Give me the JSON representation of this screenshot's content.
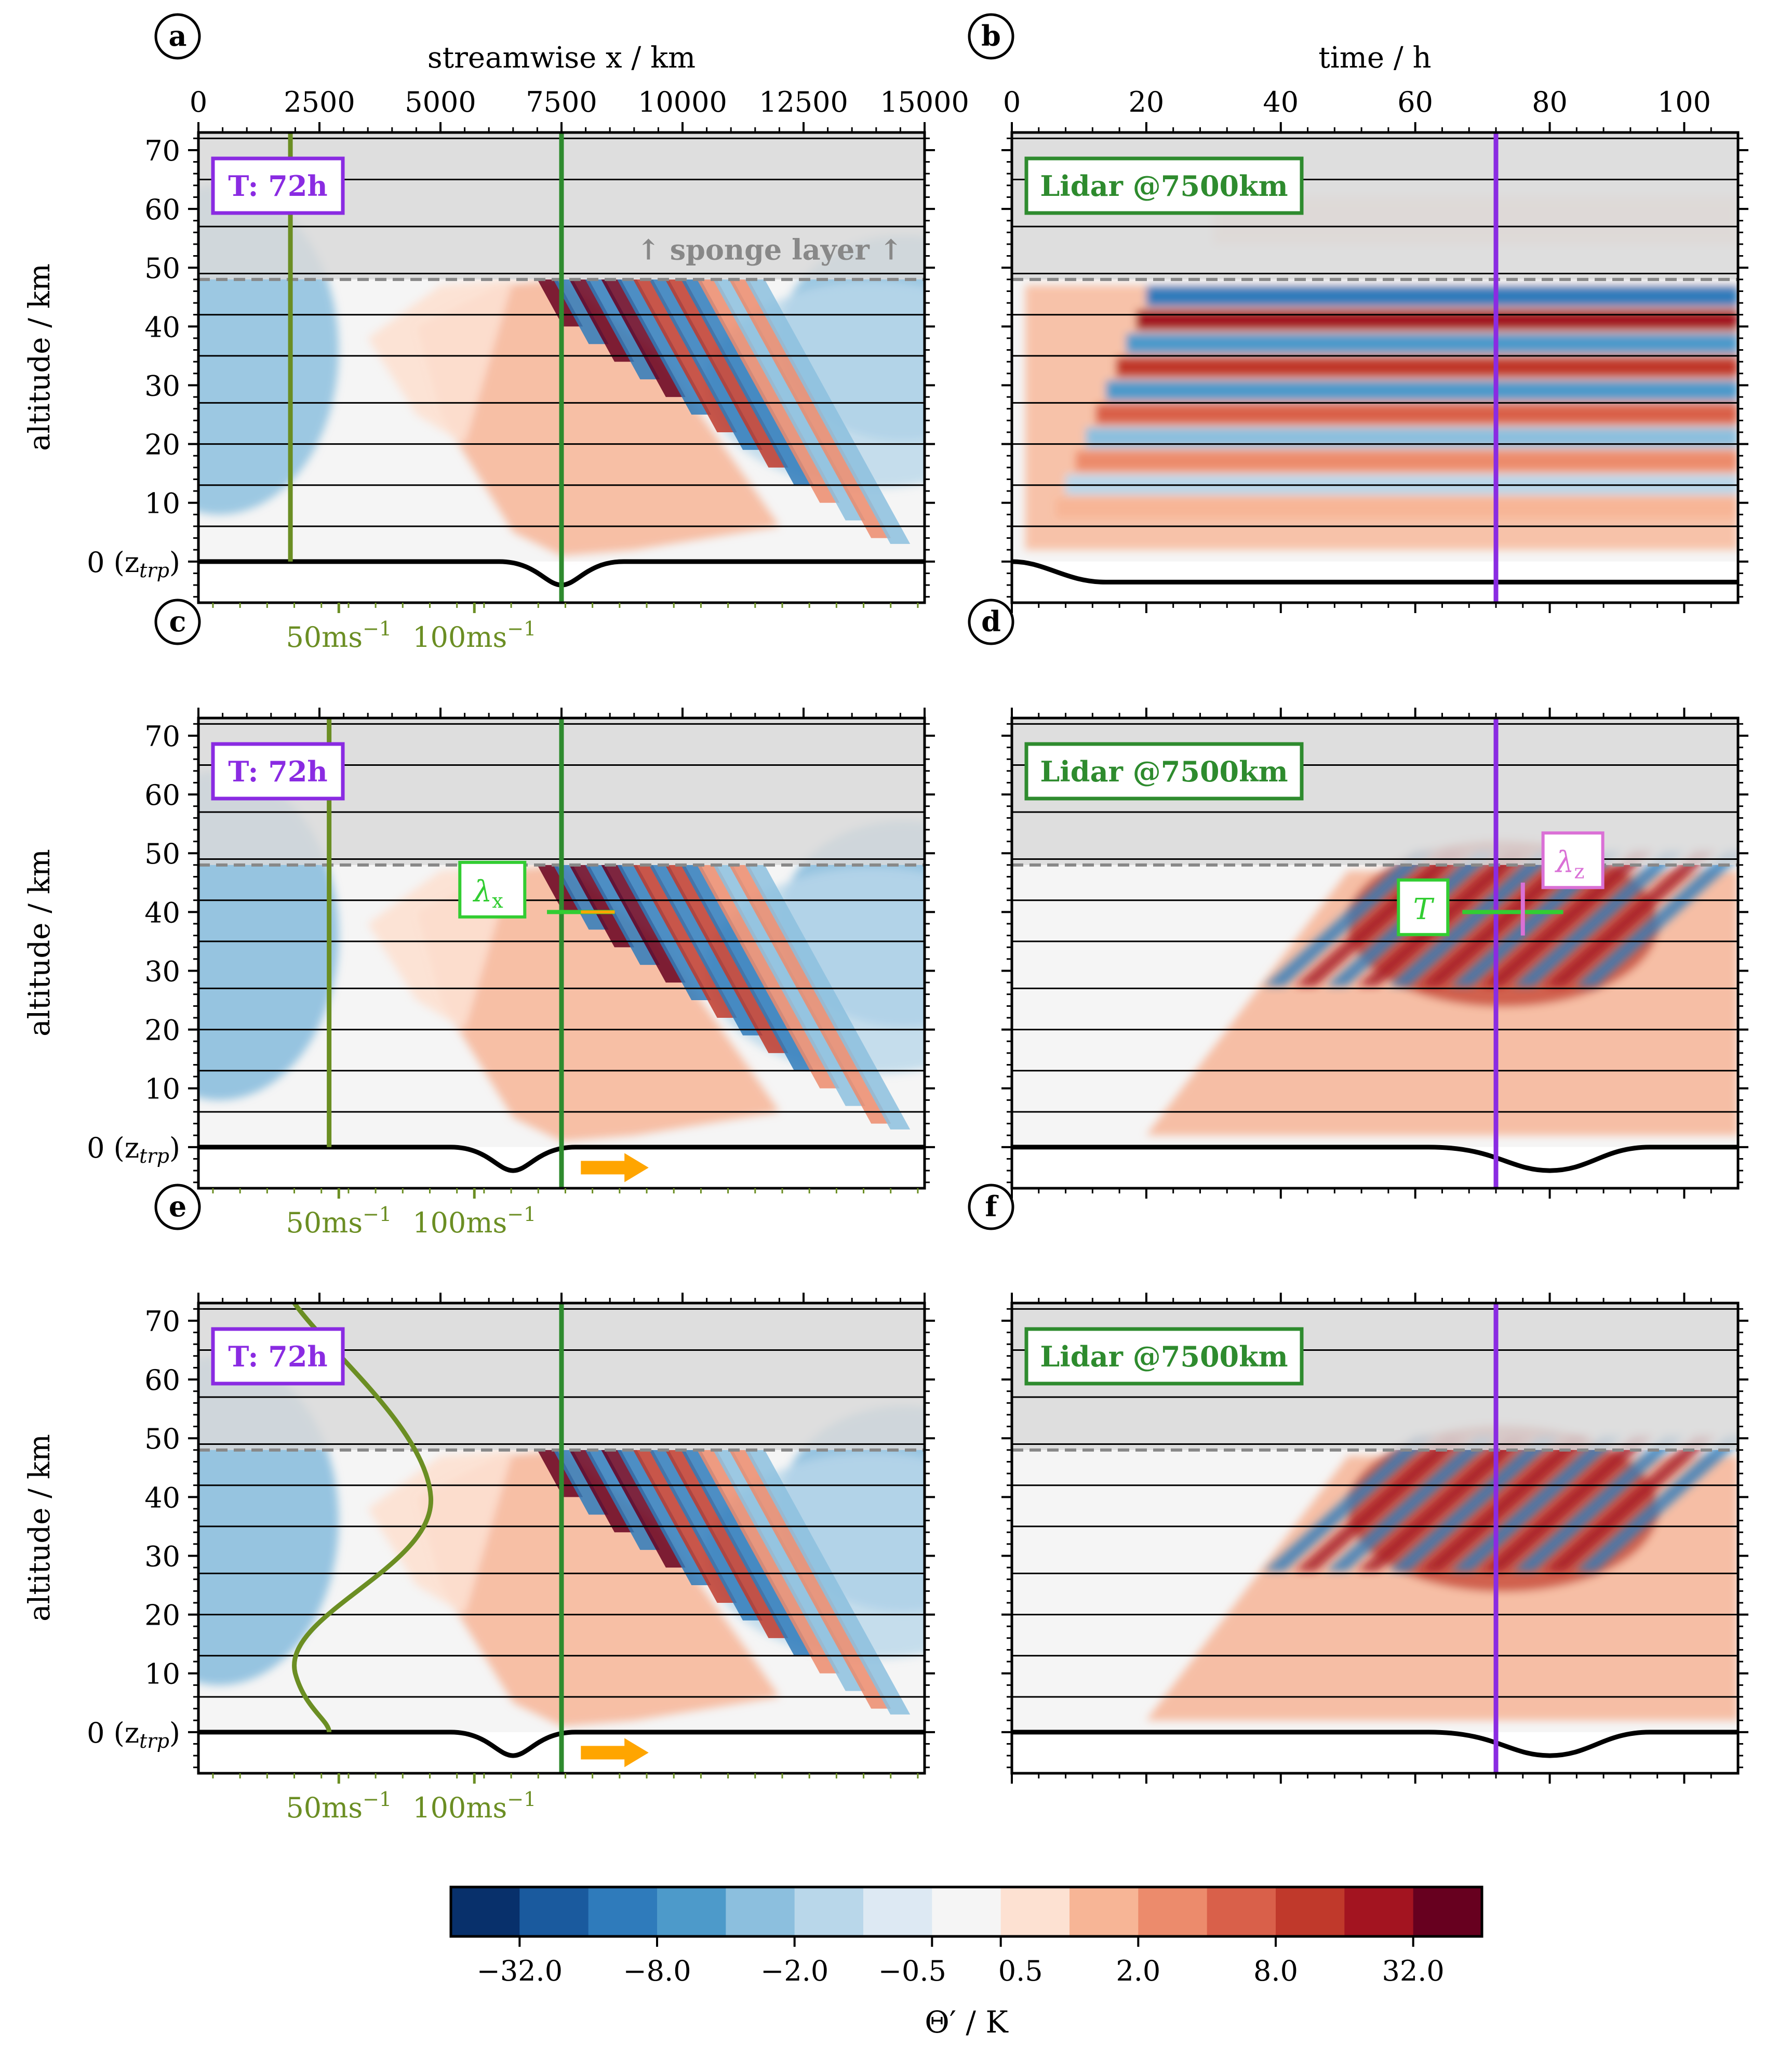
{
  "colors": {
    "sponge_fill": "#d9d9d9",
    "olive": "#6b8e23",
    "lidar_green": "#2e8b2e",
    "time_purple": "#8a2be2",
    "arrow_orange": "#ffa500",
    "lambda_x_green": "#32cd32",
    "lambda_z_pink": "#da70d6",
    "sponge_text": "#888888",
    "cmap": [
      "#08306b",
      "#1a5a9e",
      "#2f7bbb",
      "#4d9aca",
      "#8cbfde",
      "#b9d7ea",
      "#dde9f3",
      "#f5f5f5",
      "#fde1d2",
      "#f7b596",
      "#ec8b6c",
      "#d9604a",
      "#c0392b",
      "#a31420",
      "#67001f"
    ]
  },
  "panels": [
    {
      "id": "a",
      "label": "a",
      "view": "streamwise",
      "box_label": "T: 72h",
      "xlabel": "streamwise x / km",
      "xticks": [
        "0",
        "2500",
        "5000",
        "7500",
        "10000",
        "12500",
        "15000"
      ],
      "ylabel": "altitude / km",
      "yticks": [
        "70",
        "60",
        "50",
        "40",
        "30",
        "20",
        "10"
      ],
      "y0_label": "0 (z",
      "y0_sub": "trp",
      "y0_close": ")",
      "sponge_label": "↑ sponge layer ↑",
      "wind_labels": [
        "50ms",
        "100ms"
      ],
      "wind_sup": "−1"
    },
    {
      "id": "b",
      "label": "b",
      "view": "time",
      "box_label": "Lidar @7500km",
      "xlabel": "time / h",
      "xticks": [
        "0",
        "20",
        "40",
        "60",
        "80",
        "100"
      ]
    },
    {
      "id": "c",
      "label": "c",
      "view": "streamwise",
      "box_label": "T: 72h",
      "ylabel": "altitude / km",
      "yticks": [
        "70",
        "60",
        "50",
        "40",
        "30",
        "20",
        "10"
      ],
      "y0_label": "0 (z",
      "y0_sub": "trp",
      "y0_close": ")",
      "wind_labels": [
        "50ms",
        "100ms"
      ],
      "wind_sup": "−1",
      "lambda_label": "λ",
      "lambda_sub": "x"
    },
    {
      "id": "d",
      "label": "d",
      "view": "time",
      "box_label": "Lidar @7500km",
      "T_label": "T",
      "lambda_label": "λ",
      "lambda_sub": "z"
    },
    {
      "id": "e",
      "label": "e",
      "view": "streamwise",
      "box_label": "T: 72h",
      "ylabel": "altitude / km",
      "yticks": [
        "70",
        "60",
        "50",
        "40",
        "30",
        "20",
        "10"
      ],
      "y0_label": "0 (z",
      "y0_sub": "trp",
      "y0_close": ")",
      "wind_labels": [
        "50ms",
        "100ms"
      ],
      "wind_sup": "−1"
    },
    {
      "id": "f",
      "label": "f",
      "view": "time",
      "box_label": "Lidar @7500km"
    }
  ],
  "chart_data": [
    {
      "type": "heatmap",
      "panel": "a",
      "x_axis": "streamwise x / km",
      "xlim": [
        0,
        15000
      ],
      "y_axis": "altitude / km",
      "ylim": [
        -7,
        73
      ],
      "sponge_layer_above_km": 48,
      "x_marker_km": 7500,
      "wind_profile": "uniform (vertical line)"
    },
    {
      "type": "heatmap",
      "panel": "b",
      "x_axis": "time / h",
      "xlim": [
        0,
        108
      ],
      "y_axis": "altitude / km",
      "ylim": [
        -7,
        73
      ],
      "time_marker_h": 72,
      "location_km": 7500
    },
    {
      "type": "heatmap",
      "panel": "c",
      "x_axis": "streamwise x / km",
      "xlim": [
        0,
        15000
      ],
      "ylim": [
        -7,
        73
      ],
      "x_marker_km": 7500,
      "moving_source": true
    },
    {
      "type": "heatmap",
      "panel": "d",
      "x_axis": "time / h",
      "xlim": [
        0,
        108
      ],
      "ylim": [
        -7,
        73
      ],
      "time_marker_h": 72
    },
    {
      "type": "heatmap",
      "panel": "e",
      "x_axis": "streamwise x / km",
      "xlim": [
        0,
        15000
      ],
      "ylim": [
        -7,
        73
      ],
      "x_marker_km": 7500,
      "moving_source": true,
      "wind_profile": "jet peaking near 40 km"
    },
    {
      "type": "heatmap",
      "panel": "f",
      "x_axis": "time / h",
      "xlim": [
        0,
        108
      ],
      "ylim": [
        -7,
        73
      ],
      "time_marker_h": 72
    },
    {
      "type": "colorbar",
      "label": "Θ′ / K",
      "ticks": [
        "−32.0",
        "−8.0",
        "−2.0",
        "−0.5",
        "0.5",
        "2.0",
        "8.0",
        "32.0"
      ]
    }
  ]
}
